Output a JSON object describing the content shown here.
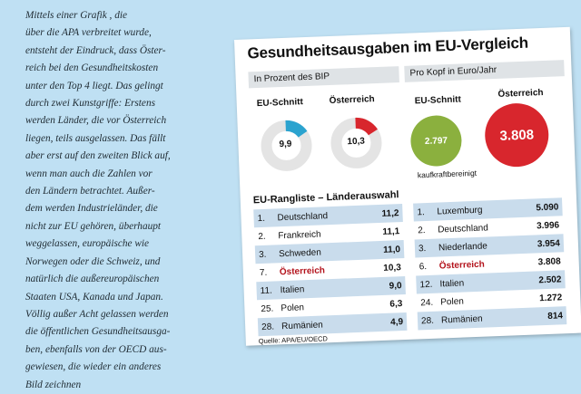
{
  "article": {
    "lines": [
      "Mittels einer Grafik          , die",
      "über die APA verbreitet wurde,",
      "entsteht der Eindruck, dass Öster-",
      "reich bei den Gesundheitskosten",
      "unter den Top 4 liegt. Das gelingt",
      "durch zwei Kunstgriffe: Erstens",
      "werden Länder, die vor Österreich",
      "liegen, teils ausgelassen. Das fällt",
      "aber erst auf den zweiten Blick auf,",
      "wenn man auch die Zahlen vor",
      "den Ländern betrachtet. Außer-",
      "dem werden Industrieländer, die",
      "nicht zur EU gehören, überhaupt",
      "weggelassen, europäische wie",
      "Norwegen oder die Schweiz, und",
      "natürlich die außereuropäischen",
      "Staaten USA, Kanada und Japan.",
      "Völlig außer Acht gelassen werden",
      "die öffentlichen Gesundheitsausga-",
      "ben, ebenfalls von der OECD aus-",
      "gewiesen, die wieder ein anderes",
      "Bild zeichnen"
    ]
  },
  "infographic": {
    "title": "Gesundheitsausgaben im EU-Vergleich",
    "left_header": "In Prozent des BIP",
    "right_header": "Pro Kopf in Euro/Jahr",
    "donut_eu_label": "EU-Schnitt",
    "donut_eu_value": "9,9",
    "donut_at_label": "Österreich",
    "donut_at_value": "10,3",
    "circle_eu_label": "EU-Schnitt",
    "circle_eu_value": "2.797",
    "circle_at_label": "Österreich",
    "circle_at_value": "3.808",
    "circle_note": "kaufkraftbereinigt",
    "ranking_title": "EU-Rangliste – Länderauswahl",
    "source": "Quelle: APA/EU/OECD",
    "colors": {
      "eu": "#2ba3cf",
      "austria": "#d8262d",
      "eu_circle": "#8bb03e",
      "row": "#c9dcec"
    }
  },
  "chart_data": [
    {
      "type": "table",
      "title": "EU-Rangliste – Länderauswahl",
      "subtitle": "In Prozent des BIP",
      "rows": [
        {
          "rank": "1.",
          "country": "Deutschland",
          "value": "11,2"
        },
        {
          "rank": "2.",
          "country": "Frankreich",
          "value": "11,1"
        },
        {
          "rank": "3.",
          "country": "Schweden",
          "value": "11,0"
        },
        {
          "rank": "7.",
          "country": "Österreich",
          "value": "10,3",
          "highlight": true
        },
        {
          "rank": "11.",
          "country": "Italien",
          "value": "9,0"
        },
        {
          "rank": "25.",
          "country": "Polen",
          "value": "6,3"
        },
        {
          "rank": "28.",
          "country": "Rumänien",
          "value": "4,9"
        }
      ]
    },
    {
      "type": "table",
      "subtitle": "Pro Kopf in Euro/Jahr",
      "rows": [
        {
          "rank": "1.",
          "country": "Luxemburg",
          "value": "5.090"
        },
        {
          "rank": "2.",
          "country": "Deutschland",
          "value": "3.996"
        },
        {
          "rank": "3.",
          "country": "Niederlande",
          "value": "3.954"
        },
        {
          "rank": "6.",
          "country": "Österreich",
          "value": "3.808",
          "highlight": true
        },
        {
          "rank": "12.",
          "country": "Italien",
          "value": "2.502"
        },
        {
          "rank": "24.",
          "country": "Polen",
          "value": "1.272"
        },
        {
          "rank": "28.",
          "country": "Rumänien",
          "value": "814"
        }
      ]
    },
    {
      "type": "pie",
      "series": [
        {
          "name": "EU-Schnitt",
          "values": [
            9.9,
            90.1
          ]
        },
        {
          "name": "Österreich",
          "values": [
            10.3,
            89.7
          ]
        }
      ]
    }
  ]
}
